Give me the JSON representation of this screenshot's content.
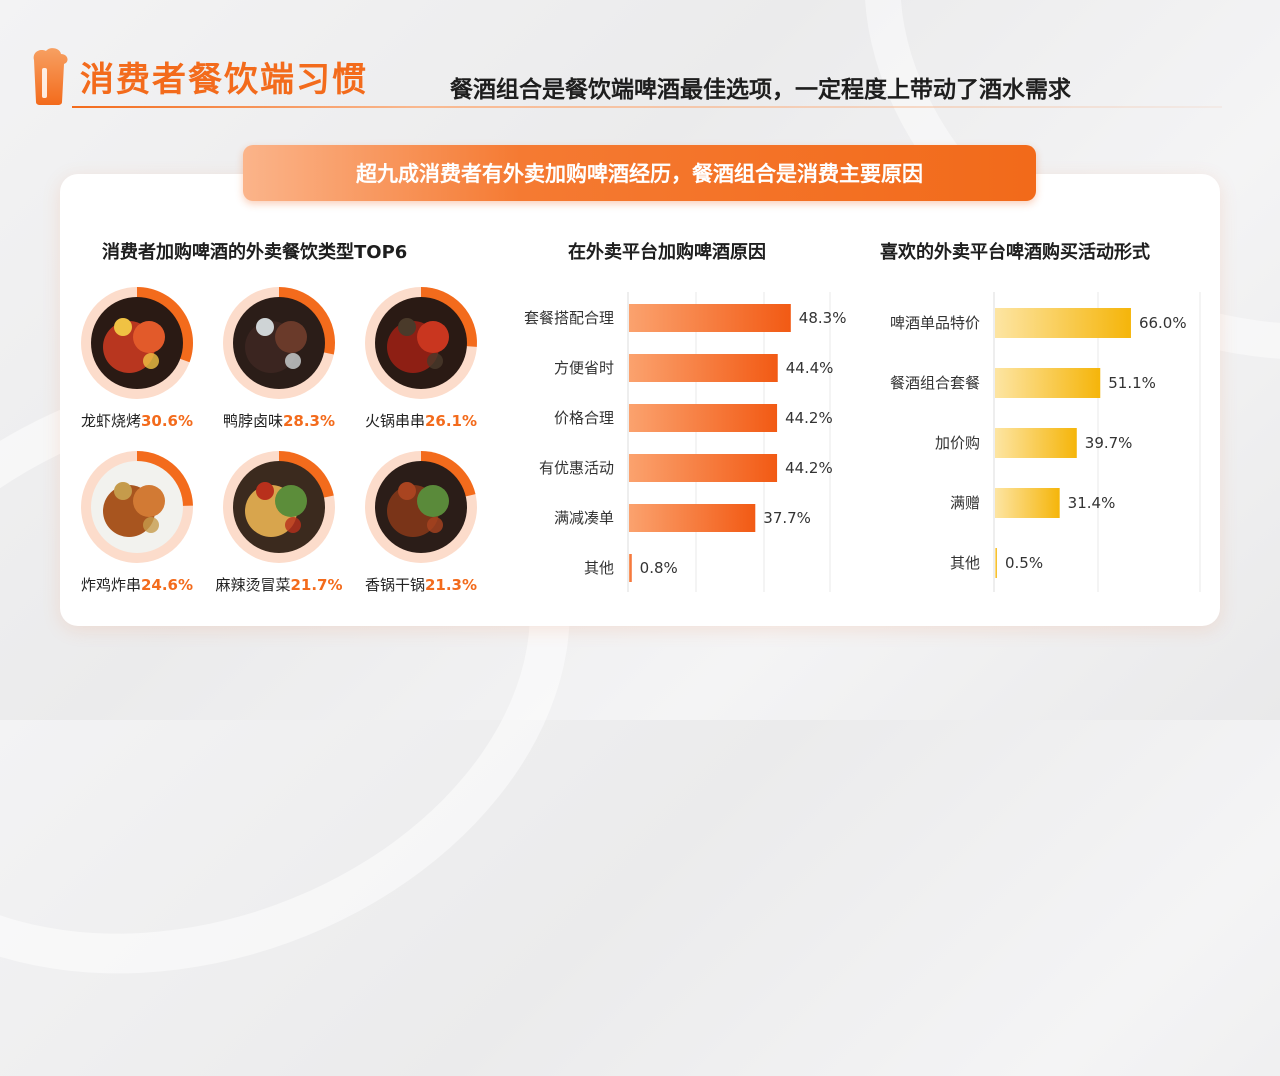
{
  "header": {
    "title": "消费者餐饮端习惯",
    "subtitle": "餐酒组合是餐饮端啤酒最佳选项，一定程度上带动了酒水需求"
  },
  "banner": {
    "text": "超九成消费者有外卖加购啤酒经历，餐酒组合是消费主要原因"
  },
  "colors": {
    "accent": "#f36b1c",
    "ring_light": "#fcdccb",
    "bar_orange": "#f36b1c",
    "bar_yellow": "#f5b50a"
  },
  "food_section": {
    "title": "消费者加购啤酒的外卖餐饮类型TOP6",
    "items": [
      {
        "name": "龙虾烧烤",
        "pct": "30.6%",
        "icon": "crayfish-bbq-photo"
      },
      {
        "name": "鸭脖卤味",
        "pct": "28.3%",
        "icon": "braised-duck-neck-photo"
      },
      {
        "name": "火锅串串",
        "pct": "26.1%",
        "icon": "hotpot-photo"
      },
      {
        "name": "炸鸡炸串",
        "pct": "24.6%",
        "icon": "fried-chicken-photo"
      },
      {
        "name": "麻辣烫冒菜",
        "pct": "21.7%",
        "icon": "malatang-photo"
      },
      {
        "name": "香锅干锅",
        "pct": "21.3%",
        "icon": "dry-pot-photo"
      }
    ]
  },
  "reasons_section": {
    "title": "在外卖平台加购啤酒原因"
  },
  "promo_section": {
    "title": "喜欢的外卖平台啤酒购买活动形式"
  },
  "chart_data": [
    {
      "type": "pie",
      "title": "消费者加购啤酒的外卖餐饮类型TOP6",
      "categories": [
        "龙虾烧烤",
        "鸭脖卤味",
        "火锅串串",
        "炸鸡炸串",
        "麻辣烫冒菜",
        "香锅干锅"
      ],
      "values": [
        30.6,
        28.3,
        26.1,
        24.6,
        21.7,
        21.3
      ],
      "unit": "%"
    },
    {
      "type": "bar",
      "orientation": "horizontal",
      "title": "在外卖平台加购啤酒原因",
      "categories": [
        "套餐搭配合理",
        "方便省时",
        "价格合理",
        "有优惠活动",
        "满减凑单",
        "其他"
      ],
      "values": [
        48.3,
        44.4,
        44.2,
        44.2,
        37.7,
        0.8
      ],
      "labels": [
        "48.3%",
        "44.4%",
        "44.2%",
        "44.2%",
        "37.7%",
        "0.8%"
      ],
      "grid": true
    },
    {
      "type": "bar",
      "orientation": "horizontal",
      "title": "喜欢的外卖平台啤酒购买活动形式",
      "categories": [
        "啤酒单品特价",
        "餐酒组合套餐",
        "加价购",
        "满赠",
        "其他"
      ],
      "values": [
        66.0,
        51.1,
        39.7,
        31.4,
        0.5
      ],
      "labels": [
        "66.0%",
        "51.1%",
        "39.7%",
        "31.4%",
        "0.5%"
      ],
      "grid": true
    }
  ]
}
